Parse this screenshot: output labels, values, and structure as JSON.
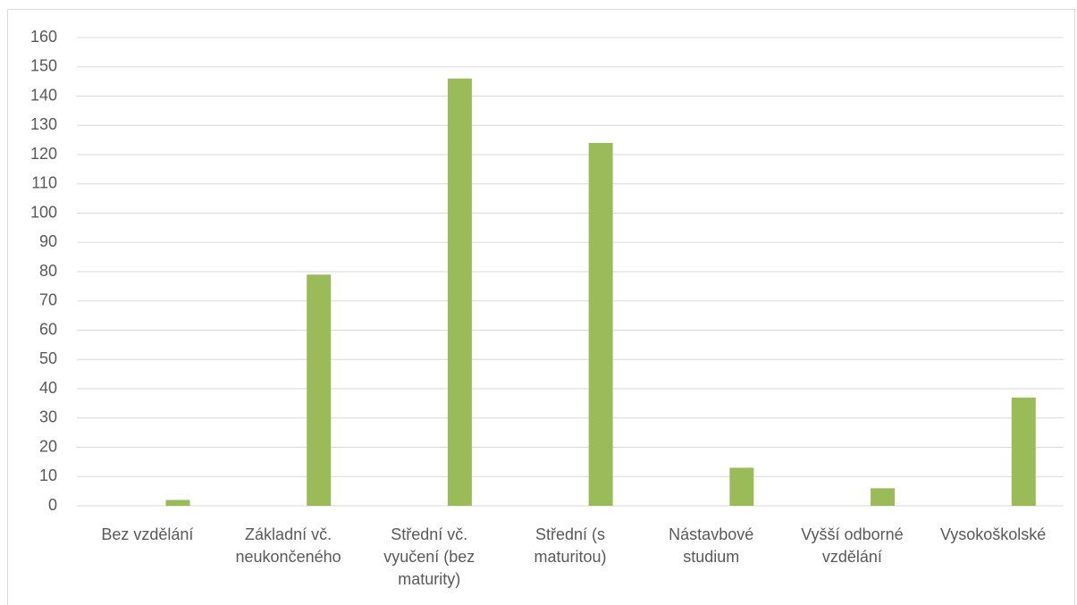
{
  "chart_data": {
    "type": "bar",
    "title": "",
    "xlabel": "",
    "ylabel": "",
    "ylim": [
      0,
      160
    ],
    "ytick_step": 10,
    "grid": true,
    "legend": "none",
    "bar_color": "#9bbb59",
    "categories": [
      "Bez vzdělání",
      "Základní vč. neukončeného",
      "Střední vč. vyučení (bez maturity)",
      "Střední (s maturitou)",
      "Nástavbové studium",
      "Vyšší odborné vzdělání",
      "Vysokoškolské"
    ],
    "category_lines": [
      [
        "Bez vzdělání"
      ],
      [
        "Základní vč.",
        "neukončeného"
      ],
      [
        "Střední vč.",
        "vyučení (bez",
        "maturity)"
      ],
      [
        "Střední (s",
        "maturitou)"
      ],
      [
        "Nástavbové",
        "studium"
      ],
      [
        "Vyšší odborné",
        "vzdělání"
      ],
      [
        "Vysokoškolské"
      ]
    ],
    "values": [
      2,
      79,
      146,
      124,
      13,
      6,
      37
    ]
  }
}
